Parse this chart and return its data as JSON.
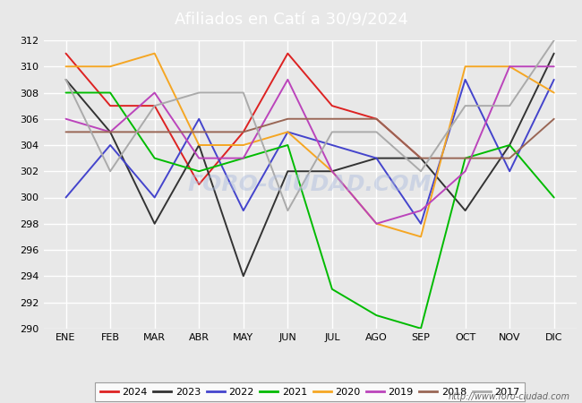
{
  "title": "Afiliados en Catí a 30/9/2024",
  "title_color": "#ffffff",
  "title_bg": "#5599dd",
  "months": [
    "ENE",
    "FEB",
    "MAR",
    "ABR",
    "MAY",
    "JUN",
    "JUL",
    "AGO",
    "SEP",
    "OCT",
    "NOV",
    "DIC"
  ],
  "ylim": [
    290,
    312
  ],
  "yticks": [
    290,
    292,
    294,
    296,
    298,
    300,
    302,
    304,
    306,
    308,
    310,
    312
  ],
  "series": {
    "2024": {
      "color": "#dd2222",
      "data": [
        311,
        307,
        307,
        301,
        305,
        311,
        307,
        306,
        303,
        null,
        null,
        null
      ]
    },
    "2023": {
      "color": "#333333",
      "data": [
        309,
        305,
        298,
        304,
        294,
        302,
        302,
        303,
        303,
        299,
        304,
        311
      ]
    },
    "2022": {
      "color": "#4444cc",
      "data": [
        300,
        304,
        300,
        306,
        299,
        305,
        304,
        303,
        298,
        309,
        302,
        309
      ]
    },
    "2021": {
      "color": "#00bb00",
      "data": [
        308,
        308,
        303,
        302,
        303,
        304,
        293,
        291,
        290,
        303,
        304,
        300
      ]
    },
    "2020": {
      "color": "#f5a623",
      "data": [
        310,
        310,
        311,
        304,
        304,
        305,
        302,
        298,
        297,
        310,
        310,
        308
      ]
    },
    "2019": {
      "color": "#bb44bb",
      "data": [
        306,
        305,
        308,
        303,
        303,
        309,
        302,
        298,
        299,
        302,
        310,
        310
      ]
    },
    "2018": {
      "color": "#996655",
      "data": [
        305,
        305,
        305,
        305,
        305,
        306,
        306,
        306,
        303,
        303,
        303,
        306
      ]
    },
    "2017": {
      "color": "#aaaaaa",
      "data": [
        309,
        302,
        307,
        308,
        308,
        299,
        305,
        305,
        302,
        307,
        307,
        312
      ]
    }
  },
  "watermark": "FORO-CIUDAD.COM",
  "url": "http://www.foro-ciudad.com",
  "background_color": "#e8e8e8",
  "plot_background": "#e8e8e8",
  "grid_color": "#ffffff",
  "legend_order": [
    "2024",
    "2023",
    "2022",
    "2021",
    "2020",
    "2019",
    "2018",
    "2017"
  ]
}
